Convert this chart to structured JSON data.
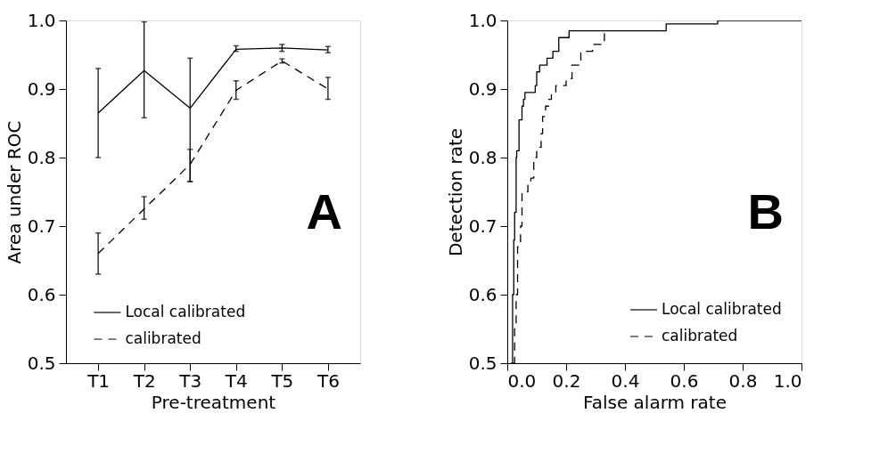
{
  "chart_data": [
    {
      "type": "line",
      "xlabel": "Pre-treatment",
      "ylabel": "Area under ROC",
      "categories": [
        "T1",
        "T2",
        "T3",
        "T4",
        "T5",
        "T6"
      ],
      "ylim": [
        0.5,
        1.0
      ],
      "yticks": [
        0.5,
        0.6,
        0.7,
        0.8,
        0.9,
        {
          "value": 1.0,
          "label": "1.0"
        }
      ],
      "grid": false,
      "legend": "bottom",
      "annotations": [
        "A"
      ],
      "series": [
        {
          "name": "Local calibrated",
          "color": "#000000",
          "line_style": "solid",
          "values": [
            0.865,
            0.927,
            0.872,
            0.958,
            0.96,
            0.957
          ],
          "errors": [
            [
              0.8,
              0.93
            ],
            [
              0.858,
              0.998
            ],
            [
              0.765,
              0.945
            ],
            [
              0.955,
              0.963
            ],
            [
              0.955,
              0.965
            ],
            [
              0.953,
              0.962
            ]
          ]
        },
        {
          "name": "calibrated",
          "color": "#000000",
          "line_style": "dashed",
          "values": [
            0.66,
            0.725,
            0.79,
            0.898,
            0.941,
            0.9
          ],
          "errors": [
            [
              0.63,
              0.69
            ],
            [
              0.71,
              0.743
            ],
            [
              0.765,
              0.812
            ],
            [
              0.885,
              0.912
            ],
            [
              0.938,
              0.944
            ],
            [
              0.885,
              0.917
            ]
          ]
        }
      ]
    },
    {
      "type": "step",
      "xlabel": "False alarm rate",
      "ylabel": "Detection rate",
      "xlim": [
        0.0,
        1.0
      ],
      "xticks": [
        {
          "value": 0.0,
          "label": "0.0"
        },
        0.2,
        0.4,
        0.6,
        0.8,
        {
          "value": 1.0,
          "label": "1.0"
        }
      ],
      "ylim": [
        0.5,
        1.0
      ],
      "yticks": [
        0.5,
        0.6,
        0.7,
        0.8,
        0.9,
        {
          "value": 1.0,
          "label": "1.0"
        }
      ],
      "grid": false,
      "legend": "bottom right",
      "annotations": [
        "B"
      ],
      "series": [
        {
          "name": "Local calibrated",
          "color": "#000000",
          "line_style": "solid",
          "x": [
            0.012,
            0.018,
            0.022,
            0.025,
            0.03,
            0.032,
            0.04,
            0.05,
            0.055,
            0.06,
            0.095,
            0.1,
            0.11,
            0.135,
            0.155,
            0.175,
            0.21,
            0.54,
            0.715,
            1.0
          ],
          "values": [
            0.5,
            0.6,
            0.68,
            0.72,
            0.8,
            0.81,
            0.855,
            0.875,
            0.885,
            0.895,
            0.905,
            0.925,
            0.935,
            0.945,
            0.955,
            0.975,
            0.985,
            0.995,
            1.0,
            1.0
          ]
        },
        {
          "name": "calibrated",
          "color": "#000000",
          "line_style": "dashed",
          "x": [
            0.02,
            0.025,
            0.03,
            0.035,
            0.045,
            0.05,
            0.07,
            0.08,
            0.09,
            0.1,
            0.115,
            0.12,
            0.13,
            0.14,
            0.15,
            0.165,
            0.2,
            0.22,
            0.25,
            0.29,
            0.33,
            0.335
          ],
          "values": [
            0.5,
            0.55,
            0.6,
            0.67,
            0.7,
            0.75,
            0.765,
            0.77,
            0.8,
            0.815,
            0.835,
            0.86,
            0.875,
            0.885,
            0.895,
            0.905,
            0.915,
            0.935,
            0.955,
            0.965,
            0.985,
            0.985
          ]
        }
      ]
    }
  ]
}
